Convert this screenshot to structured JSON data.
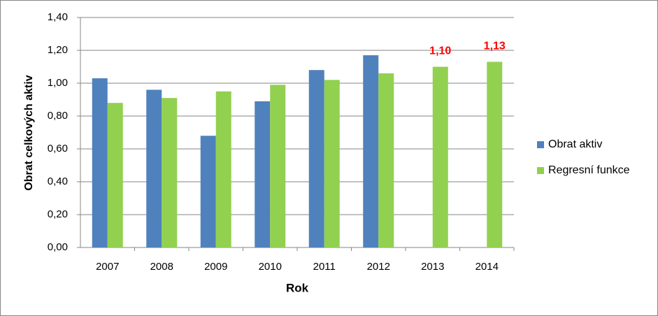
{
  "chart_data": {
    "type": "bar",
    "x_label": "Rok",
    "y_label": "Obrat celkových aktiv",
    "categories": [
      "2007",
      "2008",
      "2009",
      "2010",
      "2011",
      "2012",
      "2013",
      "2014"
    ],
    "series": [
      {
        "name": "Obrat aktiv",
        "color": "#4f81bd",
        "values": [
          1.03,
          0.96,
          0.68,
          0.89,
          1.08,
          1.17,
          null,
          null
        ]
      },
      {
        "name": "Regresní funkce",
        "color": "#92d050",
        "values": [
          0.88,
          0.91,
          0.95,
          0.99,
          1.02,
          1.06,
          1.1,
          1.13
        ],
        "value_labels": [
          null,
          null,
          null,
          null,
          null,
          null,
          "1,10",
          "1,13"
        ],
        "label_color": "#ff0000"
      }
    ],
    "ylim": [
      0,
      1.4
    ],
    "yticks": [
      {
        "value": 0,
        "label": "0,00"
      },
      {
        "value": 0.2,
        "label": "0,20"
      },
      {
        "value": 0.4,
        "label": "0,40"
      },
      {
        "value": 0.6,
        "label": "0,60"
      },
      {
        "value": 0.8,
        "label": "0,80"
      },
      {
        "value": 1.0,
        "label": "1,00"
      },
      {
        "value": 1.2,
        "label": "1,20"
      },
      {
        "value": 1.4,
        "label": "1,40"
      }
    ],
    "grid": true,
    "legend": "right"
  }
}
